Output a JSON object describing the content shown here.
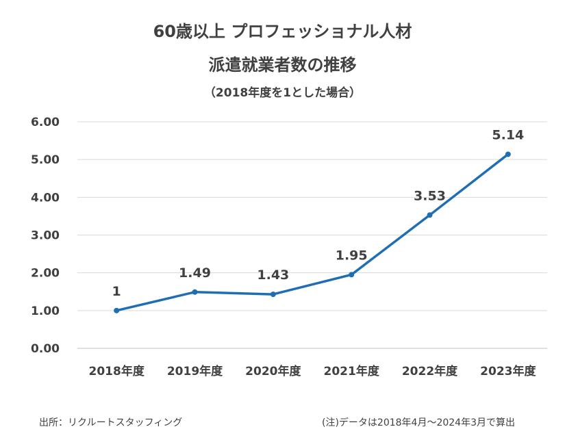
{
  "chart_data": {
    "type": "line",
    "title_line1": "60歳以上 プロフェッショナル人材",
    "title_line2": "派遣就業者数の推移",
    "subtitle": "（2018年度を1とした場合）",
    "categories": [
      "2018年度",
      "2019年度",
      "2020年度",
      "2021年度",
      "2022年度",
      "2023年度"
    ],
    "values": [
      1,
      1.49,
      1.43,
      1.95,
      3.53,
      5.14
    ],
    "data_labels": [
      "1",
      "1.49",
      "1.43",
      "1.95",
      "3.53",
      "5.14"
    ],
    "y_ticks": [
      "0.00",
      "1.00",
      "2.00",
      "3.00",
      "4.00",
      "5.00",
      "6.00"
    ],
    "ylim": [
      0,
      6
    ],
    "grid": true,
    "xlabel": "",
    "ylabel": "",
    "line_color": "#1f6eb4",
    "grid_color": "#d9d9d9"
  },
  "footer": {
    "source": "出所：リクルートスタッフィング",
    "note": "(注)データは2018年4月～2024年3月で算出"
  }
}
